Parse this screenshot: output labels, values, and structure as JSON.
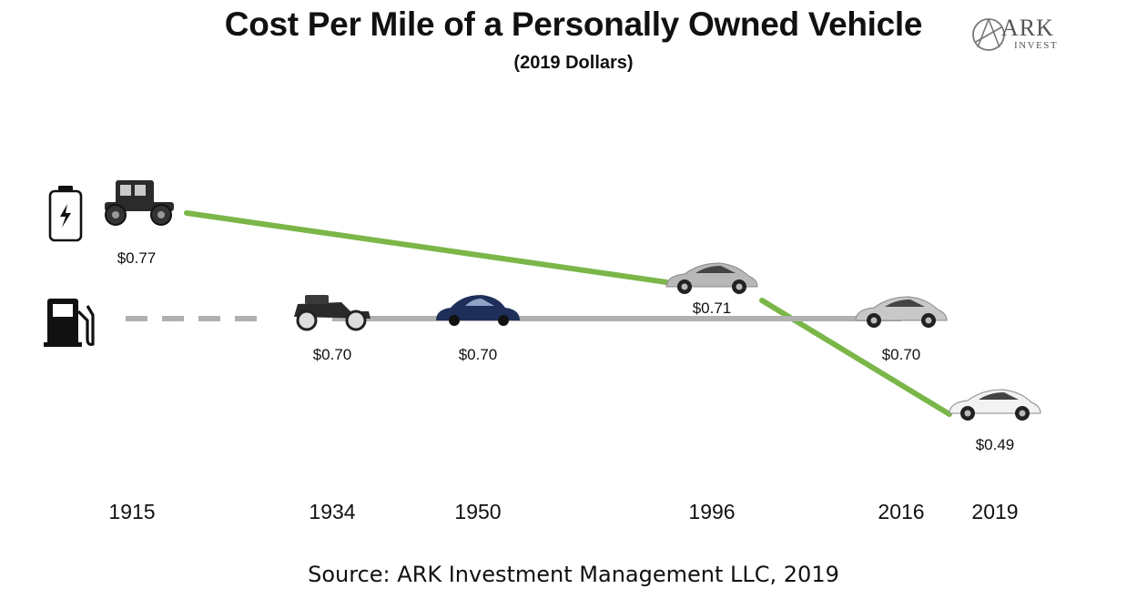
{
  "header": {
    "title": "Cost Per Mile of a Personally Owned Vehicle",
    "subtitle": "(2019 Dollars)"
  },
  "logo": {
    "word": "ARK",
    "sub": "INVEST"
  },
  "footer": {
    "source": "Source: ARK Investment Management LLC, 2019"
  },
  "colors": {
    "electric": "#7ab648",
    "gas": "#b0b0b0",
    "text": "#111111"
  },
  "icons": {
    "electric_series": "battery-icon",
    "gas_series": "fuel-pump-icon"
  },
  "chart_data": {
    "type": "line",
    "title": "Cost Per Mile of a Personally Owned Vehicle",
    "subtitle": "(2019 Dollars)",
    "xlabel": "",
    "ylabel": "",
    "x": [
      "1915",
      "1934",
      "1950",
      "1996",
      "2016",
      "2019"
    ],
    "series": [
      {
        "key": "electric",
        "color": "#7ab648",
        "points": [
          {
            "x": "1915",
            "y": 0.77,
            "label": "$0.77"
          },
          {
            "x": "1996",
            "y": 0.71,
            "label": "$0.71"
          },
          {
            "x": "2019",
            "y": 0.49,
            "label": "$0.49"
          }
        ]
      },
      {
        "key": "gas",
        "color": "#b0b0b0",
        "dashed_until": "1934",
        "points": [
          {
            "x": "1934",
            "y": 0.7,
            "label": "$0.70"
          },
          {
            "x": "1950",
            "y": 0.7,
            "label": "$0.70"
          },
          {
            "x": "2016",
            "y": 0.7,
            "label": "$0.70"
          }
        ]
      }
    ],
    "grid": false,
    "legend": "icons at left"
  }
}
